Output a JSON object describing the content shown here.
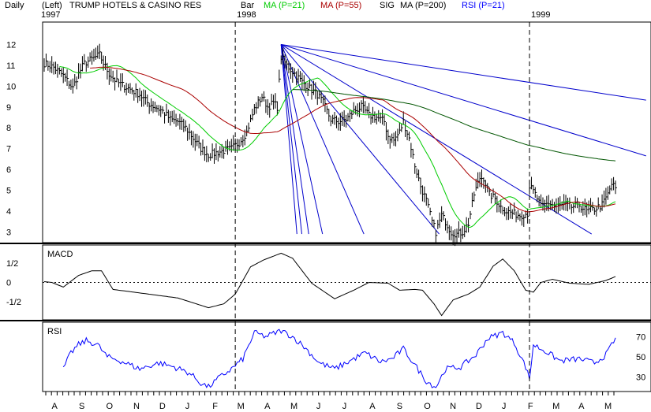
{
  "header": {
    "period": "Daily",
    "scale_side": "(Left)",
    "title": "TRUMP HOTELS & CASINO RES",
    "bar_label": "Bar",
    "ma21_label": "MA (P=21)",
    "ma55_label": "MA (P=55)",
    "sig_label": "SIG",
    "ma200_label": "MA (P=200)",
    "rsi_label": "RSI (P=21)"
  },
  "colors": {
    "price": "#000000",
    "ma21": "#00cc00",
    "ma55": "#aa0000",
    "ma200": "#005500",
    "rsi": "#0000ff",
    "fan": "#0000cc",
    "macd": "#000000",
    "year_divider": "#000000"
  },
  "chart_data": [
    {
      "type": "line",
      "panel": "price",
      "year_labels": [
        {
          "label": "1997",
          "index": 0
        },
        {
          "label": "1998",
          "index": 100
        },
        {
          "label": "1999",
          "index": 254
        }
      ],
      "yticks": [
        3,
        4,
        5,
        6,
        7,
        8,
        9,
        10,
        11,
        12
      ],
      "ylim": [
        2.6,
        13.0
      ],
      "n_bars": 300,
      "anchors": [
        [
          0,
          11.1
        ],
        [
          5,
          10.9
        ],
        [
          10,
          10.5
        ],
        [
          15,
          9.9
        ],
        [
          18,
          10.6
        ],
        [
          21,
          11.1
        ],
        [
          25,
          11.3
        ],
        [
          29,
          11.5
        ],
        [
          31,
          11.1
        ],
        [
          34,
          10.6
        ],
        [
          38,
          10.2
        ],
        [
          42,
          10.0
        ],
        [
          46,
          9.8
        ],
        [
          50,
          9.6
        ],
        [
          54,
          9.2
        ],
        [
          58,
          9.0
        ],
        [
          62,
          8.8
        ],
        [
          66,
          8.4
        ],
        [
          70,
          8.3
        ],
        [
          74,
          8.0
        ],
        [
          78,
          7.5
        ],
        [
          82,
          7.0
        ],
        [
          86,
          6.7
        ],
        [
          90,
          6.8
        ],
        [
          94,
          6.9
        ],
        [
          98,
          7.0
        ],
        [
          102,
          7.3
        ],
        [
          106,
          7.8
        ],
        [
          110,
          8.9
        ],
        [
          114,
          9.5
        ],
        [
          117,
          9.0
        ],
        [
          120,
          9.2
        ],
        [
          122,
          9.0
        ],
        [
          124,
          11.4
        ],
        [
          127,
          11.0
        ],
        [
          131,
          10.6
        ],
        [
          135,
          10.2
        ],
        [
          139,
          9.9
        ],
        [
          143,
          9.6
        ],
        [
          146,
          9.2
        ],
        [
          150,
          8.4
        ],
        [
          154,
          8.3
        ],
        [
          158,
          8.4
        ],
        [
          162,
          8.8
        ],
        [
          166,
          9.0
        ],
        [
          170,
          8.6
        ],
        [
          174,
          8.5
        ],
        [
          178,
          8.3
        ],
        [
          180,
          7.6
        ],
        [
          183,
          7.4
        ],
        [
          186,
          7.8
        ],
        [
          188,
          8.3
        ],
        [
          191,
          7.5
        ],
        [
          194,
          6.2
        ],
        [
          197,
          5.2
        ],
        [
          200,
          4.5
        ],
        [
          203,
          3.5
        ],
        [
          205,
          3.0
        ],
        [
          208,
          3.8
        ],
        [
          210,
          3.5
        ],
        [
          213,
          3.0
        ],
        [
          216,
          2.9
        ],
        [
          219,
          3.0
        ],
        [
          222,
          3.4
        ],
        [
          225,
          4.8
        ],
        [
          228,
          5.6
        ],
        [
          230,
          5.6
        ],
        [
          233,
          4.8
        ],
        [
          236,
          4.6
        ],
        [
          239,
          4.2
        ],
        [
          242,
          4.0
        ],
        [
          245,
          3.9
        ],
        [
          249,
          3.8
        ],
        [
          253,
          3.9
        ],
        [
          254,
          5.2
        ],
        [
          257,
          4.8
        ],
        [
          260,
          4.2
        ],
        [
          264,
          4.4
        ],
        [
          268,
          4.2
        ],
        [
          272,
          4.3
        ],
        [
          276,
          4.2
        ],
        [
          280,
          4.3
        ],
        [
          284,
          4.0
        ],
        [
          288,
          4.1
        ],
        [
          292,
          4.3
        ],
        [
          295,
          4.8
        ],
        [
          297,
          5.3
        ],
        [
          299,
          5.1
        ]
      ],
      "series": [
        {
          "name": "MA (P=21)",
          "key": "ma21",
          "period": 21
        },
        {
          "name": "MA (P=55)",
          "key": "ma55",
          "period": 55
        },
        {
          "name": "MA (P=200)",
          "key": "ma200",
          "period": 200
        }
      ],
      "gann_fan": {
        "origin": {
          "index": 124,
          "value": 12.0
        },
        "slopes_per_bar": [
          -0.014,
          -0.028,
          -0.056,
          -0.11,
          -0.21,
          -0.42,
          -0.63,
          -0.84,
          -1.1
        ]
      }
    },
    {
      "type": "line",
      "panel": "macd",
      "label": "MACD",
      "yticks": [
        {
          "label": "1/2",
          "value": 0.5
        },
        {
          "label": "0",
          "value": 0
        },
        {
          "label": "-1/2",
          "value": -0.5
        }
      ],
      "ylim": [
        -0.9,
        0.9
      ],
      "anchors": [
        [
          0,
          0.02
        ],
        [
          4,
          0.0
        ],
        [
          10,
          -0.12
        ],
        [
          18,
          0.18
        ],
        [
          25,
          0.3
        ],
        [
          30,
          0.3
        ],
        [
          36,
          -0.18
        ],
        [
          50,
          -0.27
        ],
        [
          70,
          -0.4
        ],
        [
          86,
          -0.65
        ],
        [
          94,
          -0.55
        ],
        [
          100,
          -0.3
        ],
        [
          108,
          0.4
        ],
        [
          115,
          0.58
        ],
        [
          124,
          0.75
        ],
        [
          130,
          0.62
        ],
        [
          140,
          -0.02
        ],
        [
          152,
          -0.42
        ],
        [
          162,
          -0.2
        ],
        [
          170,
          0.0
        ],
        [
          180,
          -0.02
        ],
        [
          186,
          -0.2
        ],
        [
          194,
          -0.18
        ],
        [
          198,
          -0.2
        ],
        [
          204,
          -0.55
        ],
        [
          208,
          -0.85
        ],
        [
          214,
          -0.45
        ],
        [
          222,
          -0.3
        ],
        [
          228,
          -0.12
        ],
        [
          235,
          0.42
        ],
        [
          240,
          0.6
        ],
        [
          246,
          0.3
        ],
        [
          252,
          -0.2
        ],
        [
          256,
          -0.25
        ],
        [
          260,
          0.0
        ],
        [
          266,
          0.08
        ],
        [
          275,
          -0.02
        ],
        [
          285,
          -0.05
        ],
        [
          294,
          0.05
        ],
        [
          299,
          0.15
        ]
      ]
    },
    {
      "type": "line",
      "panel": "rsi",
      "label": "RSI",
      "yticks": [
        30,
        50,
        70
      ],
      "ylim": [
        18,
        82
      ],
      "anchors": [
        [
          10,
          38
        ],
        [
          14,
          54
        ],
        [
          18,
          62
        ],
        [
          22,
          66
        ],
        [
          28,
          62
        ],
        [
          33,
          50
        ],
        [
          40,
          46
        ],
        [
          50,
          38
        ],
        [
          60,
          44
        ],
        [
          68,
          40
        ],
        [
          76,
          34
        ],
        [
          82,
          24
        ],
        [
          86,
          20
        ],
        [
          92,
          30
        ],
        [
          98,
          38
        ],
        [
          104,
          48
        ],
        [
          110,
          74
        ],
        [
          116,
          70
        ],
        [
          124,
          76
        ],
        [
          130,
          70
        ],
        [
          136,
          60
        ],
        [
          144,
          44
        ],
        [
          152,
          38
        ],
        [
          160,
          46
        ],
        [
          168,
          54
        ],
        [
          176,
          45
        ],
        [
          182,
          48
        ],
        [
          188,
          58
        ],
        [
          194,
          42
        ],
        [
          200,
          26
        ],
        [
          205,
          20
        ],
        [
          210,
          38
        ],
        [
          218,
          40
        ],
        [
          226,
          52
        ],
        [
          232,
          68
        ],
        [
          240,
          74
        ],
        [
          246,
          64
        ],
        [
          252,
          40
        ],
        [
          254,
          28
        ],
        [
          256,
          62
        ],
        [
          262,
          56
        ],
        [
          270,
          46
        ],
        [
          280,
          48
        ],
        [
          288,
          44
        ],
        [
          294,
          52
        ],
        [
          299,
          68
        ]
      ]
    },
    {
      "type": "axis",
      "panel": "time",
      "month_labels": [
        {
          "label": "A",
          "index": 8
        },
        {
          "label": "S",
          "index": 30
        },
        {
          "label": "O",
          "index": 52
        },
        {
          "label": "N",
          "index": 74
        },
        {
          "label": "D",
          "index": 95
        },
        {
          "label": "J",
          "index": 116
        },
        {
          "label": "F",
          "index": 138
        },
        {
          "label": "M",
          "index": 158
        },
        {
          "label": "A",
          "index": 180
        },
        {
          "label": "M",
          "index": 201
        },
        {
          "label": "J",
          "index": 222
        },
        {
          "label": "J",
          "index": 243
        },
        {
          "label": "A",
          "index": 265
        },
        {
          "label": "S",
          "index": 287
        },
        {
          "label": "O",
          "index": 309
        },
        {
          "label": "N",
          "index": 330
        },
        {
          "label": "D",
          "index": 351
        },
        {
          "label": "J",
          "index": 372
        },
        {
          "label": "F",
          "index": 393
        },
        {
          "label": "M",
          "index": 413
        },
        {
          "label": "A",
          "index": 434
        },
        {
          "label": "M",
          "index": 455
        }
      ]
    }
  ]
}
